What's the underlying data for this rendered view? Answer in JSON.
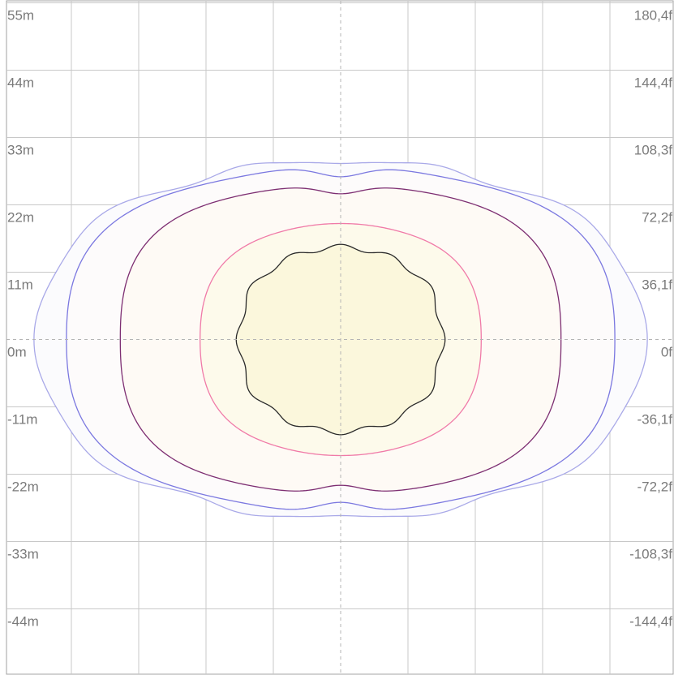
{
  "chart_data": {
    "type": "contour",
    "grid": true,
    "left_axis_ticks": [
      {
        "value": 55,
        "label": "55m"
      },
      {
        "value": 44,
        "label": "44m"
      },
      {
        "value": 33,
        "label": "33m"
      },
      {
        "value": 22,
        "label": "22m"
      },
      {
        "value": 11,
        "label": "11m"
      },
      {
        "value": 0,
        "label": "0m"
      },
      {
        "value": -11,
        "label": "-11m"
      },
      {
        "value": -22,
        "label": "-22m"
      },
      {
        "value": -33,
        "label": "-33m"
      },
      {
        "value": -44,
        "label": "-44m"
      }
    ],
    "right_axis_ticks": [
      {
        "value": 55,
        "label": "180,4f"
      },
      {
        "value": 44,
        "label": "144,4f"
      },
      {
        "value": 33,
        "label": "108,3f"
      },
      {
        "value": 22,
        "label": "72,2f"
      },
      {
        "value": 11,
        "label": "36,1f"
      },
      {
        "value": 0,
        "label": "0f"
      },
      {
        "value": -11,
        "label": "-36,1f"
      },
      {
        "value": -22,
        "label": "-72,2f"
      },
      {
        "value": -33,
        "label": "-108,3f"
      },
      {
        "value": -44,
        "label": "-144,4f"
      }
    ],
    "y_range": [
      -55,
      55
    ],
    "x_range": [
      -55,
      55
    ],
    "contours": [
      {
        "stroke": "#a9a9e8",
        "fill": "#fbfbfd",
        "a": 47.5,
        "b": 29.2,
        "n": 2.6,
        "mod": [
          0,
          0,
          0,
          0,
          0.04,
          0,
          0,
          0,
          0,
          0,
          0,
          0,
          0.015
        ],
        "dips": [
          {
            "ang": 90,
            "depth": 0.07,
            "width": 8
          },
          {
            "ang": 270,
            "depth": 0.07,
            "width": 8
          }
        ]
      },
      {
        "stroke": "#7b78e0",
        "fill": "#fdfbfb",
        "a": 43.5,
        "b": 27.7,
        "n": 2.9,
        "mod": [
          0,
          0,
          0,
          0,
          0.03
        ],
        "dips": [
          {
            "ang": 90,
            "depth": 0.07,
            "width": 8
          },
          {
            "ang": 270,
            "depth": 0.07,
            "width": 8
          }
        ]
      },
      {
        "stroke": "#7d2e72",
        "fill": "#fefaf5",
        "a": 35.3,
        "b": 24.8,
        "n": 3.0,
        "mod": [
          0,
          0,
          0,
          0,
          0.02
        ],
        "dips": [
          {
            "ang": 90,
            "depth": 0.06,
            "width": 8
          },
          {
            "ang": 270,
            "depth": 0.06,
            "width": 8
          }
        ]
      },
      {
        "stroke": "#f07aa8",
        "fill": "#fdfaeb",
        "a": 22.3,
        "b": 18.4,
        "n": 3.0,
        "mod": [
          0,
          0,
          0,
          0,
          0.03
        ],
        "dips": []
      },
      {
        "stroke": "#2a2a2a",
        "fill": "#fbf7dc",
        "a": 15.8,
        "b": 14.4,
        "n": 3.2,
        "mod": [
          0,
          0,
          0,
          0,
          0.05,
          0,
          0,
          0,
          0,
          0,
          0,
          0,
          0.03
        ],
        "dips": []
      }
    ]
  }
}
